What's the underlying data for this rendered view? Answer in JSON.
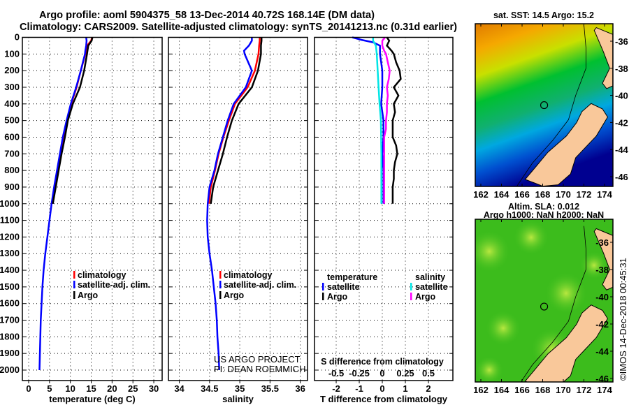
{
  "title_line1": "Argo profile: aoml 5904375_58 13-Dec-2014 40.72S 168.14E (DM data)",
  "title_line2": "Climatology: CARS2009. Satellite-adjusted climatology: synTS_20141213.nc (0.31d earlier)",
  "credit": "©IMOS 14-Dec-2018 00:45:31",
  "project_line1": "US ARGO PROJECT",
  "project_line2": "PI: DEAN ROEMMICH",
  "colors": {
    "climatology": "#ff0000",
    "satellite": "#0000ff",
    "argo": "#000000",
    "sal_satellite": "#00e5e5",
    "sal_argo": "#ff00ff",
    "land": "#f9c89a"
  },
  "chart_data": [
    {
      "type": "line",
      "id": "temperature",
      "xlabel": "temperature (deg C)",
      "ylabel": "",
      "xlim": [
        -1.5,
        32
      ],
      "ylim": [
        2060,
        0
      ],
      "xticks": [
        0,
        5,
        10,
        15,
        20,
        25,
        30
      ],
      "yticks": [
        0,
        100,
        200,
        300,
        400,
        500,
        600,
        700,
        800,
        900,
        1000,
        1100,
        1200,
        1300,
        1400,
        1500,
        1600,
        1700,
        1800,
        1900,
        2000
      ],
      "grid": true,
      "legend": {
        "placement": "lower-center",
        "entries": [
          "climatology",
          "satellite-adj. clim.",
          "Argo"
        ]
      },
      "series": [
        {
          "name": "climatology",
          "color": "#ff0000",
          "depth": [
            0,
            20,
            50,
            100,
            200,
            300,
            400,
            500,
            600,
            700,
            800,
            900,
            1000
          ],
          "values": [
            15.2,
            15.0,
            14.0,
            13.6,
            12.5,
            11.5,
            10.2,
            9.2,
            8.3,
            7.6,
            6.9,
            6.2,
            5.6
          ]
        },
        {
          "name": "satellite-adj. clim.",
          "color": "#0000ff",
          "depth": [
            0,
            20,
            50,
            80,
            100,
            200,
            300,
            400,
            500,
            600,
            700,
            800,
            900,
            1000,
            1100,
            1200,
            1300,
            1400,
            1500,
            1600,
            1700,
            1800,
            1900,
            2000
          ],
          "values": [
            13.8,
            13.9,
            13.8,
            13.6,
            13.5,
            12.5,
            11.4,
            10.1,
            9.1,
            8.2,
            7.5,
            6.8,
            6.1,
            5.5,
            5.0,
            4.5,
            4.0,
            3.6,
            3.3,
            3.1,
            2.9,
            2.8,
            2.7,
            2.6
          ]
        },
        {
          "name": "Argo",
          "color": "#000000",
          "depth": [
            0,
            20,
            50,
            100,
            200,
            300,
            400,
            500,
            600,
            700,
            800,
            900,
            1000
          ],
          "values": [
            15.3,
            15.1,
            14.3,
            14.0,
            13.3,
            12.3,
            10.6,
            9.4,
            8.7,
            7.9,
            7.2,
            6.5,
            5.8
          ]
        }
      ]
    },
    {
      "type": "line",
      "id": "salinity",
      "xlabel": "salinity",
      "xlim": [
        33.82,
        36.12
      ],
      "ylim": [
        2060,
        0
      ],
      "xticks": [
        34,
        34.5,
        35,
        35.5,
        36
      ],
      "grid": true,
      "legend": {
        "placement": "lower-center",
        "entries": [
          "climatology",
          "satellite-adj. clim.",
          "Argo"
        ]
      },
      "series": [
        {
          "name": "climatology",
          "color": "#ff0000",
          "depth": [
            0,
            20,
            50,
            100,
            200,
            300,
            400,
            500,
            600,
            700,
            800,
            900,
            1000
          ],
          "values": [
            35.33,
            35.33,
            35.32,
            35.31,
            35.25,
            35.13,
            34.92,
            34.82,
            34.73,
            34.65,
            34.59,
            34.52,
            34.49
          ]
        },
        {
          "name": "satellite-adj. clim.",
          "color": "#0000ff",
          "depth": [
            0,
            20,
            50,
            80,
            100,
            200,
            300,
            400,
            500,
            600,
            700,
            800,
            900,
            1000,
            1100,
            1200,
            1300,
            1400,
            1500,
            1600,
            1700,
            1800,
            1900,
            2000
          ],
          "values": [
            35.2,
            35.2,
            35.15,
            35.07,
            35.08,
            35.2,
            35.1,
            34.9,
            34.8,
            34.72,
            34.64,
            34.58,
            34.5,
            34.47,
            34.46,
            34.47,
            34.5,
            34.54,
            34.57,
            34.6,
            34.62,
            34.63,
            34.65,
            34.66
          ]
        },
        {
          "name": "Argo",
          "color": "#000000",
          "depth": [
            0,
            20,
            50,
            100,
            200,
            300,
            400,
            500,
            600,
            700,
            800,
            900,
            1000
          ],
          "values": [
            35.36,
            35.36,
            35.35,
            35.35,
            35.3,
            35.2,
            34.98,
            34.87,
            34.79,
            34.72,
            34.64,
            34.56,
            34.52
          ]
        }
      ]
    },
    {
      "type": "line",
      "id": "difference",
      "xlabel": "T difference from climatology",
      "xlabel2": "S difference from climatology",
      "xlim": [
        -2.94,
        3.06
      ],
      "ylim": [
        2060,
        0
      ],
      "xticks": [
        -2,
        -1,
        0,
        1,
        2
      ],
      "xticks2": [
        -0.5,
        -0.25,
        0,
        0.25,
        0.5
      ],
      "xtick2_labels": [
        "-0.5",
        "-0.25",
        "0",
        "0.25",
        "0.5"
      ],
      "grid": true,
      "legend": {
        "placement": "lower",
        "groups": [
          {
            "title": "temperature",
            "entries": [
              "satellite",
              "Argo"
            ]
          },
          {
            "title": "salinity",
            "entries": [
              "satellite",
              "Argo"
            ]
          }
        ]
      },
      "series": [
        {
          "name": "temperature satellite",
          "color": "#0000ff",
          "units": "T",
          "depth": [
            0,
            15,
            30,
            50,
            80,
            100,
            150,
            200,
            300,
            400,
            500,
            600,
            700,
            800,
            900,
            1000
          ],
          "values": [
            -1.3,
            -0.9,
            -0.4,
            -0.1,
            -0.1,
            -0.1,
            -0.05,
            0.0,
            0.0,
            -0.05,
            0.05,
            0.05,
            0.0,
            0.05,
            0.05,
            0.05
          ]
        },
        {
          "name": "temperature Argo",
          "color": "#000000",
          "depth": [
            0,
            20,
            50,
            80,
            100,
            150,
            200,
            250,
            300,
            350,
            400,
            450,
            500,
            600,
            650,
            700,
            750,
            800,
            850,
            900,
            950,
            1000
          ],
          "values": [
            0.2,
            0.3,
            0.2,
            0.4,
            0.5,
            0.6,
            0.75,
            0.8,
            0.5,
            0.7,
            0.5,
            0.55,
            0.45,
            0.45,
            0.6,
            0.65,
            0.55,
            0.5,
            0.5,
            0.45,
            0.45,
            0.45
          ]
        },
        {
          "name": "salinity satellite",
          "color": "#00e5e5",
          "units": "S",
          "depth": [
            0,
            20,
            50,
            100,
            200,
            300,
            400,
            500,
            700,
            800,
            1000
          ],
          "values": [
            -0.1,
            -0.1,
            -0.07,
            -0.06,
            -0.05,
            -0.04,
            -0.03,
            -0.015,
            -0.01,
            -0.01,
            -0.01
          ]
        },
        {
          "name": "salinity Argo",
          "color": "#ff00ff",
          "depth": [
            0,
            20,
            50,
            80,
            100,
            150,
            200,
            250,
            300,
            350,
            400,
            450,
            500,
            550,
            600,
            700,
            800,
            900,
            1000
          ],
          "values": [
            0.03,
            0.0,
            0.0,
            0.02,
            0.04,
            0.06,
            0.08,
            0.07,
            0.05,
            0.06,
            0.05,
            0.05,
            0.04,
            0.04,
            0.02,
            0.02,
            0.02,
            0.02,
            0.02
          ]
        }
      ]
    }
  ],
  "maps": [
    {
      "id": "sst",
      "title": "sat. SST: 14.5 Argo: 15.2",
      "xticks": [
        162,
        164,
        166,
        168,
        170,
        172,
        174
      ],
      "yticks": [
        -36,
        -38,
        -40,
        -42,
        -44,
        -46
      ],
      "marker": {
        "lon": 168.14,
        "lat": -40.72
      }
    },
    {
      "id": "sla",
      "title_line1": "Altim. SLA: 0.012",
      "title_line2": "Argo h1000: NaN h2000: NaN",
      "xticks": [
        162,
        164,
        166,
        168,
        170,
        172,
        174
      ],
      "yticks": [
        -36,
        -38,
        -40,
        -42,
        -44,
        -46
      ],
      "marker": {
        "lon": 168.14,
        "lat": -40.72
      }
    }
  ]
}
